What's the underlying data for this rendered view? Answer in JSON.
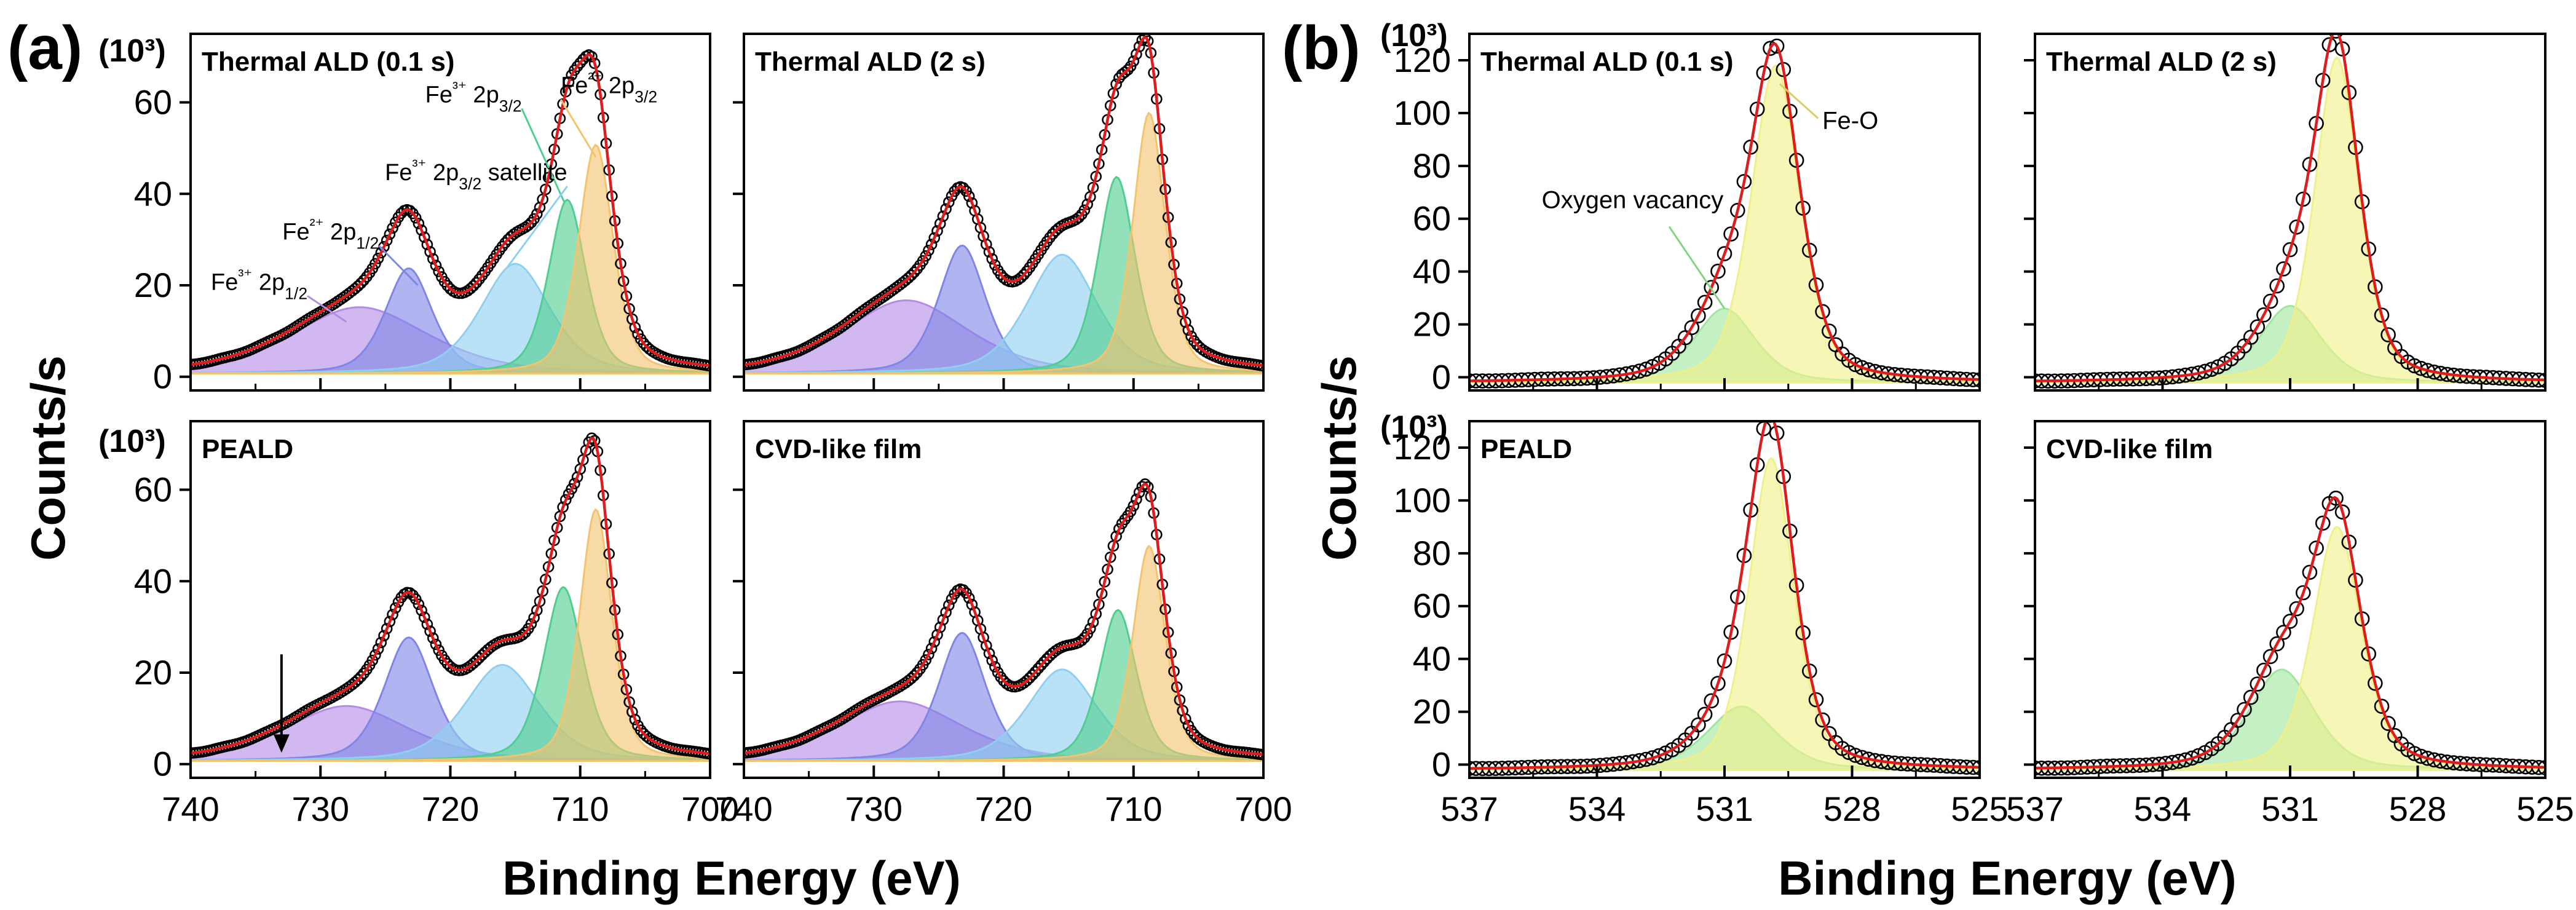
{
  "figure": {
    "panel_a_label": "(a)",
    "panel_b_label": "(b)",
    "multiplier": "(10³)",
    "y_axis_title": "Counts/s",
    "x_axis_title": "Binding Energy (eV)"
  },
  "colors": {
    "fe3_2p12": "#b48ce6",
    "fe2_2p12": "#7f86e6",
    "fe3_sat": "#8fd0f0",
    "fe3_2p32": "#4fce8f",
    "fe2_2p32": "#f2c46e",
    "fit": "#e01b1b",
    "o1s_main": "#f0f08a",
    "o1s_vac": "#a0e6a0",
    "data": "#000000"
  },
  "chart_data": [
    {
      "id": "a1",
      "group": "a",
      "type": "line",
      "title": "Thermal ALD (0.1 s)",
      "xlabel": "Binding Energy (eV)",
      "ylabel": "Counts/s",
      "xlim": [
        740,
        700
      ],
      "ylim": [
        -3,
        75
      ],
      "baseline": 0.7,
      "xticks": [
        740,
        730,
        720,
        710,
        700
      ],
      "yticks": [
        0,
        20,
        40,
        60
      ],
      "components": [
        {
          "name": "Fe³⁺ 2p1/2",
          "center": 727,
          "height": 14.5,
          "width": 5.5,
          "color": "fe3_2p12"
        },
        {
          "name": "Fe²⁺ 2p1/2",
          "center": 723.2,
          "height": 23,
          "width": 1.9,
          "color": "fe2_2p12"
        },
        {
          "name": "Fe³⁺ 2p3/2 satellite",
          "center": 715,
          "height": 24,
          "width": 2.8,
          "color": "fe3_sat"
        },
        {
          "name": "Fe³⁺ 2p3/2",
          "center": 711,
          "height": 38,
          "width": 1.5,
          "color": "fe3_2p32"
        },
        {
          "name": "Fe²⁺ 2p3/2",
          "center": 708.8,
          "height": 50,
          "width": 1.4,
          "color": "fe2_2p32"
        }
      ],
      "annotations": [
        "Fe³⁺ 2p3/2",
        "Fe²⁺ 2p3/2",
        "Fe³⁺ 2p3/2 satellite",
        "Fe²⁺ 2p1/2",
        "Fe³⁺ 2p1/2"
      ],
      "has_arrow": false
    },
    {
      "id": "a2",
      "group": "a",
      "type": "line",
      "title": "Thermal ALD (2 s)",
      "xlabel": "Binding Energy (eV)",
      "ylabel": "Counts/s",
      "xlim": [
        740,
        700
      ],
      "ylim": [
        -3,
        75
      ],
      "baseline": 0.7,
      "xticks": [
        740,
        730,
        720,
        710,
        700
      ],
      "yticks": [
        0,
        20,
        40,
        60
      ],
      "components": [
        {
          "name": "Fe³⁺ 2p1/2",
          "center": 727.5,
          "height": 16,
          "width": 5,
          "color": "fe3_2p12"
        },
        {
          "name": "Fe²⁺ 2p1/2",
          "center": 723.2,
          "height": 28,
          "width": 1.9,
          "color": "fe2_2p12"
        },
        {
          "name": "Fe³⁺ 2p3/2 satellite",
          "center": 715.5,
          "height": 26,
          "width": 2.8,
          "color": "fe3_sat"
        },
        {
          "name": "Fe³⁺ 2p3/2",
          "center": 711.3,
          "height": 43,
          "width": 1.5,
          "color": "fe3_2p32"
        },
        {
          "name": "Fe²⁺ 2p3/2",
          "center": 708.8,
          "height": 57,
          "width": 1.3,
          "color": "fe2_2p32"
        }
      ],
      "annotations": [],
      "has_arrow": false
    },
    {
      "id": "a3",
      "group": "a",
      "type": "line",
      "title": "PEALD",
      "xlabel": "Binding Energy (eV)",
      "ylabel": "Counts/s",
      "xlim": [
        740,
        700
      ],
      "ylim": [
        -3,
        75
      ],
      "baseline": 0.7,
      "xticks": [
        740,
        730,
        720,
        710,
        700
      ],
      "yticks": [
        0,
        20,
        40,
        60
      ],
      "components": [
        {
          "name": "Fe³⁺ 2p1/2",
          "center": 728,
          "height": 12,
          "width": 5,
          "color": "fe3_2p12"
        },
        {
          "name": "Fe²⁺ 2p1/2",
          "center": 723.2,
          "height": 27,
          "width": 2,
          "color": "fe2_2p12"
        },
        {
          "name": "Fe³⁺ 2p3/2 satellite",
          "center": 716,
          "height": 21,
          "width": 3,
          "color": "fe3_sat"
        },
        {
          "name": "Fe³⁺ 2p3/2",
          "center": 711.3,
          "height": 38,
          "width": 1.6,
          "color": "fe3_2p32"
        },
        {
          "name": "Fe²⁺ 2p3/2",
          "center": 708.8,
          "height": 55,
          "width": 1.3,
          "color": "fe2_2p32"
        }
      ],
      "annotations": [],
      "has_arrow": true,
      "arrow_x": 733
    },
    {
      "id": "a4",
      "group": "a",
      "type": "line",
      "title": "CVD-like film",
      "xlabel": "Binding Energy (eV)",
      "ylabel": "Counts/s",
      "xlim": [
        740,
        700
      ],
      "ylim": [
        -3,
        75
      ],
      "baseline": 0.7,
      "xticks": [
        740,
        730,
        720,
        710,
        700
      ],
      "yticks": [
        0,
        20,
        40,
        60
      ],
      "components": [
        {
          "name": "Fe³⁺ 2p1/2",
          "center": 728,
          "height": 13,
          "width": 5,
          "color": "fe3_2p12"
        },
        {
          "name": "Fe²⁺ 2p1/2",
          "center": 723.2,
          "height": 28,
          "width": 1.9,
          "color": "fe2_2p12"
        },
        {
          "name": "Fe³⁺ 2p3/2 satellite",
          "center": 715.5,
          "height": 20,
          "width": 2.8,
          "color": "fe3_sat"
        },
        {
          "name": "Fe³⁺ 2p3/2",
          "center": 711.2,
          "height": 33,
          "width": 1.5,
          "color": "fe3_2p32"
        },
        {
          "name": "Fe²⁺ 2p3/2",
          "center": 708.8,
          "height": 47,
          "width": 1.3,
          "color": "fe2_2p32"
        }
      ],
      "annotations": [],
      "has_arrow": false
    },
    {
      "id": "b1",
      "group": "b",
      "type": "line",
      "title": "Thermal ALD (0.1 s)",
      "xlabel": "Binding Energy (eV)",
      "ylabel": "Counts/s",
      "xlim": [
        537,
        525
      ],
      "ylim": [
        -5,
        130
      ],
      "baseline": -2,
      "xticks": [
        537,
        534,
        531,
        528,
        525
      ],
      "yticks": [
        0,
        20,
        40,
        60,
        80,
        100,
        120
      ],
      "components": [
        {
          "name": "Oxygen vacancy",
          "center": 531.0,
          "height": 28,
          "width": 0.75,
          "color": "o1s_vac"
        },
        {
          "name": "Fe-O",
          "center": 529.8,
          "height": 120,
          "width": 0.6,
          "color": "o1s_main"
        }
      ],
      "annotations": [
        "Fe-O",
        "Oxygen vacancy"
      ],
      "has_arrow": false
    },
    {
      "id": "b2",
      "group": "b",
      "type": "line",
      "title": "Thermal ALD (2 s)",
      "xlabel": "Binding Energy (eV)",
      "ylabel": "Counts/s",
      "xlim": [
        537,
        525
      ],
      "ylim": [
        -5,
        130
      ],
      "baseline": -2,
      "xticks": [
        537,
        534,
        531,
        528,
        525
      ],
      "yticks": [
        0,
        20,
        40,
        60,
        80,
        100,
        120
      ],
      "components": [
        {
          "name": "Oxygen vacancy",
          "center": 531.0,
          "height": 29,
          "width": 0.75,
          "color": "o1s_vac"
        },
        {
          "name": "Fe-O",
          "center": 529.9,
          "height": 123,
          "width": 0.55,
          "color": "o1s_main"
        }
      ],
      "annotations": [],
      "has_arrow": false
    },
    {
      "id": "b3",
      "group": "b",
      "type": "line",
      "title": "PEALD",
      "xlabel": "Binding Energy (eV)",
      "ylabel": "Counts/s",
      "xlim": [
        537,
        525
      ],
      "ylim": [
        -5,
        130
      ],
      "baseline": -2,
      "xticks": [
        537,
        534,
        531,
        528,
        525
      ],
      "yticks": [
        0,
        20,
        40,
        60,
        80,
        100,
        120
      ],
      "components": [
        {
          "name": "Oxygen vacancy",
          "center": 530.6,
          "height": 24,
          "width": 0.85,
          "color": "o1s_vac"
        },
        {
          "name": "Fe-O",
          "center": 529.9,
          "height": 118,
          "width": 0.55,
          "color": "o1s_main"
        }
      ],
      "annotations": [],
      "has_arrow": false
    },
    {
      "id": "b4",
      "group": "b",
      "type": "line",
      "title": "CVD-like film",
      "xlabel": "Binding Energy (eV)",
      "ylabel": "Counts/s",
      "xlim": [
        537,
        525
      ],
      "ylim": [
        -5,
        130
      ],
      "baseline": -2,
      "xticks": [
        537,
        534,
        531,
        528,
        525
      ],
      "yticks": [
        0,
        20,
        40,
        60,
        80,
        100,
        120
      ],
      "components": [
        {
          "name": "Oxygen vacancy",
          "center": 531.2,
          "height": 38,
          "width": 0.8,
          "color": "o1s_vac"
        },
        {
          "name": "Fe-O",
          "center": 529.9,
          "height": 92,
          "width": 0.6,
          "color": "o1s_main"
        }
      ],
      "annotations": [],
      "has_arrow": false
    }
  ]
}
